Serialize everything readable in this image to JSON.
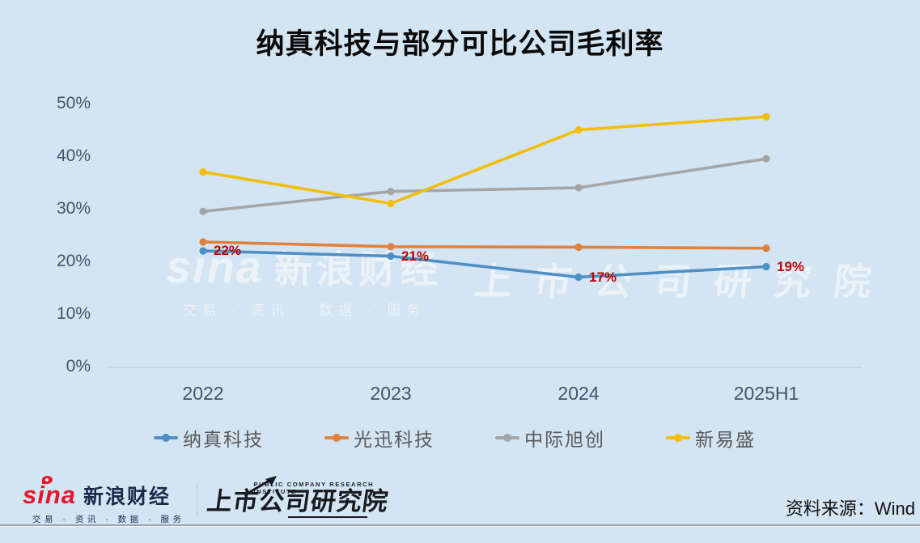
{
  "title": "纳真科技与部分可比公司毛利率",
  "chart_data": {
    "type": "line",
    "title": "纳真科技与部分可比公司毛利率",
    "categories": [
      "2022",
      "2023",
      "2024",
      "2025H1"
    ],
    "series": [
      {
        "name": "纳真科技",
        "color": "#4E8FC6",
        "values": [
          22,
          21,
          17,
          19
        ],
        "data_labels": [
          "22%",
          "21%",
          "17%",
          "19%"
        ]
      },
      {
        "name": "光迅科技",
        "color": "#E0813D",
        "values": [
          23.7,
          22.8,
          22.7,
          22.5
        ]
      },
      {
        "name": "中际旭创",
        "color": "#A5A5A5",
        "values": [
          29.5,
          33.3,
          34,
          39.5
        ]
      },
      {
        "name": "新易盛",
        "color": "#F2BE0D",
        "values": [
          37,
          31,
          45,
          47.5
        ]
      }
    ],
    "yticks": [
      0,
      10,
      20,
      30,
      40,
      50
    ],
    "ytick_suffix": "%",
    "ylim": [
      0,
      50
    ],
    "grid": false,
    "legend_position": "bottom",
    "data_label_color": "#C00000",
    "background_color": "#D3E4F2"
  },
  "watermark": {
    "brand": "sina",
    "brand_cn": "新浪财经",
    "tagline": "交易 · 资讯 · 数据 · 服务",
    "institute": "上市公司研究院"
  },
  "footer": {
    "sina_wordmark": "sina",
    "sina_cn": "新浪财经",
    "tagline": "交易 · 资讯 · 数据 · 服务",
    "institute_en": "PUBLIC COMPANY RESEARCH INSTITUTE",
    "institute_cn": "上市公司研究院"
  },
  "source": "资料来源：Wind"
}
